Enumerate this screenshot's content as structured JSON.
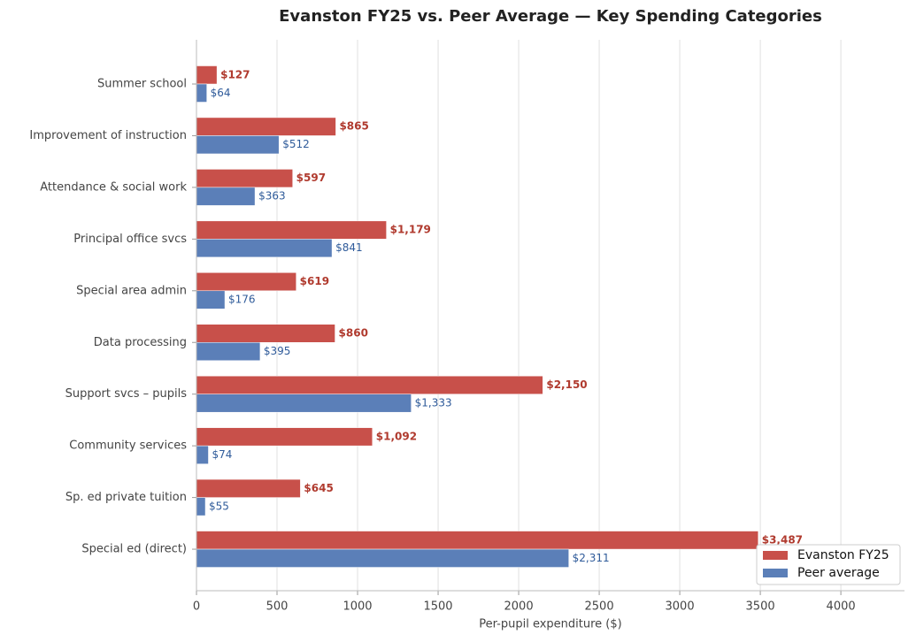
{
  "chart_data": {
    "type": "barh",
    "title": "Evanston FY25 vs. Peer Average — Key Spending Categories",
    "xlabel": "Per-pupil expenditure ($)",
    "categories": [
      "Summer school",
      "Improvement of instruction",
      "Attendance & social work",
      "Principal office svcs",
      "Special area admin",
      "Data processing",
      "Support svcs – pupils",
      "Community services",
      "Sp. ed private tuition",
      "Special ed (direct)"
    ],
    "series": [
      {
        "name": "Evanston FY25",
        "color": "#c8504a",
        "label_color": "#b03a2e",
        "values": [
          127,
          865,
          597,
          1179,
          619,
          860,
          2150,
          1092,
          645,
          3487
        ],
        "value_labels": [
          "$127",
          "$865",
          "$597",
          "$1,179",
          "$619",
          "$860",
          "$2,150",
          "$1,092",
          "$645",
          "$3,487"
        ]
      },
      {
        "name": "Peer average",
        "color": "#5b7fb8",
        "label_color": "#2f5b9a",
        "values": [
          64,
          512,
          363,
          841,
          176,
          395,
          1333,
          74,
          55,
          2311
        ],
        "value_labels": [
          "$64",
          "$512",
          "$363",
          "$841",
          "$176",
          "$395",
          "$1,333",
          "$74",
          "$55",
          "$2,311"
        ]
      }
    ],
    "xlim": [
      0,
      4395
    ],
    "xticks": [
      0,
      500,
      1000,
      1500,
      2000,
      2500,
      3000,
      3500,
      4000
    ],
    "grid": true,
    "legend": "lower right"
  }
}
